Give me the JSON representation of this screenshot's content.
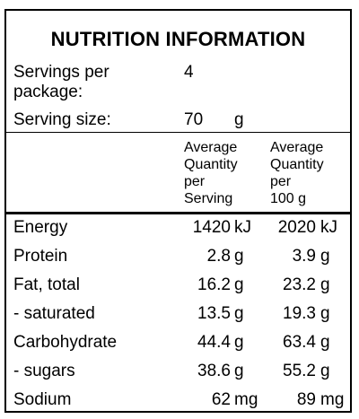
{
  "title": "NUTRITION INFORMATION",
  "servings": {
    "label_line1": "Servings per",
    "label_line2": "package:",
    "value": "4"
  },
  "serving_size": {
    "label": "Serving size:",
    "value": "70",
    "unit": "g"
  },
  "headers": {
    "per_serving": [
      "Average",
      "Quantity",
      "per",
      "Serving"
    ],
    "per_100g": [
      "Average",
      "Quantity",
      "per",
      "100 g"
    ]
  },
  "rows": [
    {
      "name": "Energy",
      "serving": "1420",
      "serving_unit": "kJ",
      "per100": "2020",
      "per100_unit": "kJ"
    },
    {
      "name": "Protein",
      "serving": "2.8",
      "serving_unit": "g",
      "per100": "3.9",
      "per100_unit": "g"
    },
    {
      "name": "Fat, total",
      "serving": "16.2",
      "serving_unit": "g",
      "per100": "23.2",
      "per100_unit": "g"
    },
    {
      "name": "- saturated",
      "serving": "13.5",
      "serving_unit": "g",
      "per100": "19.3",
      "per100_unit": "g"
    },
    {
      "name": "Carbohydrate",
      "serving": "44.4",
      "serving_unit": "g",
      "per100": "63.4",
      "per100_unit": "g"
    },
    {
      "name": "- sugars",
      "serving": "38.6",
      "serving_unit": "g",
      "per100": "55.2",
      "per100_unit": "g"
    },
    {
      "name": "Sodium",
      "serving": "62",
      "serving_unit": "mg",
      "per100": "89",
      "per100_unit": "mg"
    }
  ]
}
